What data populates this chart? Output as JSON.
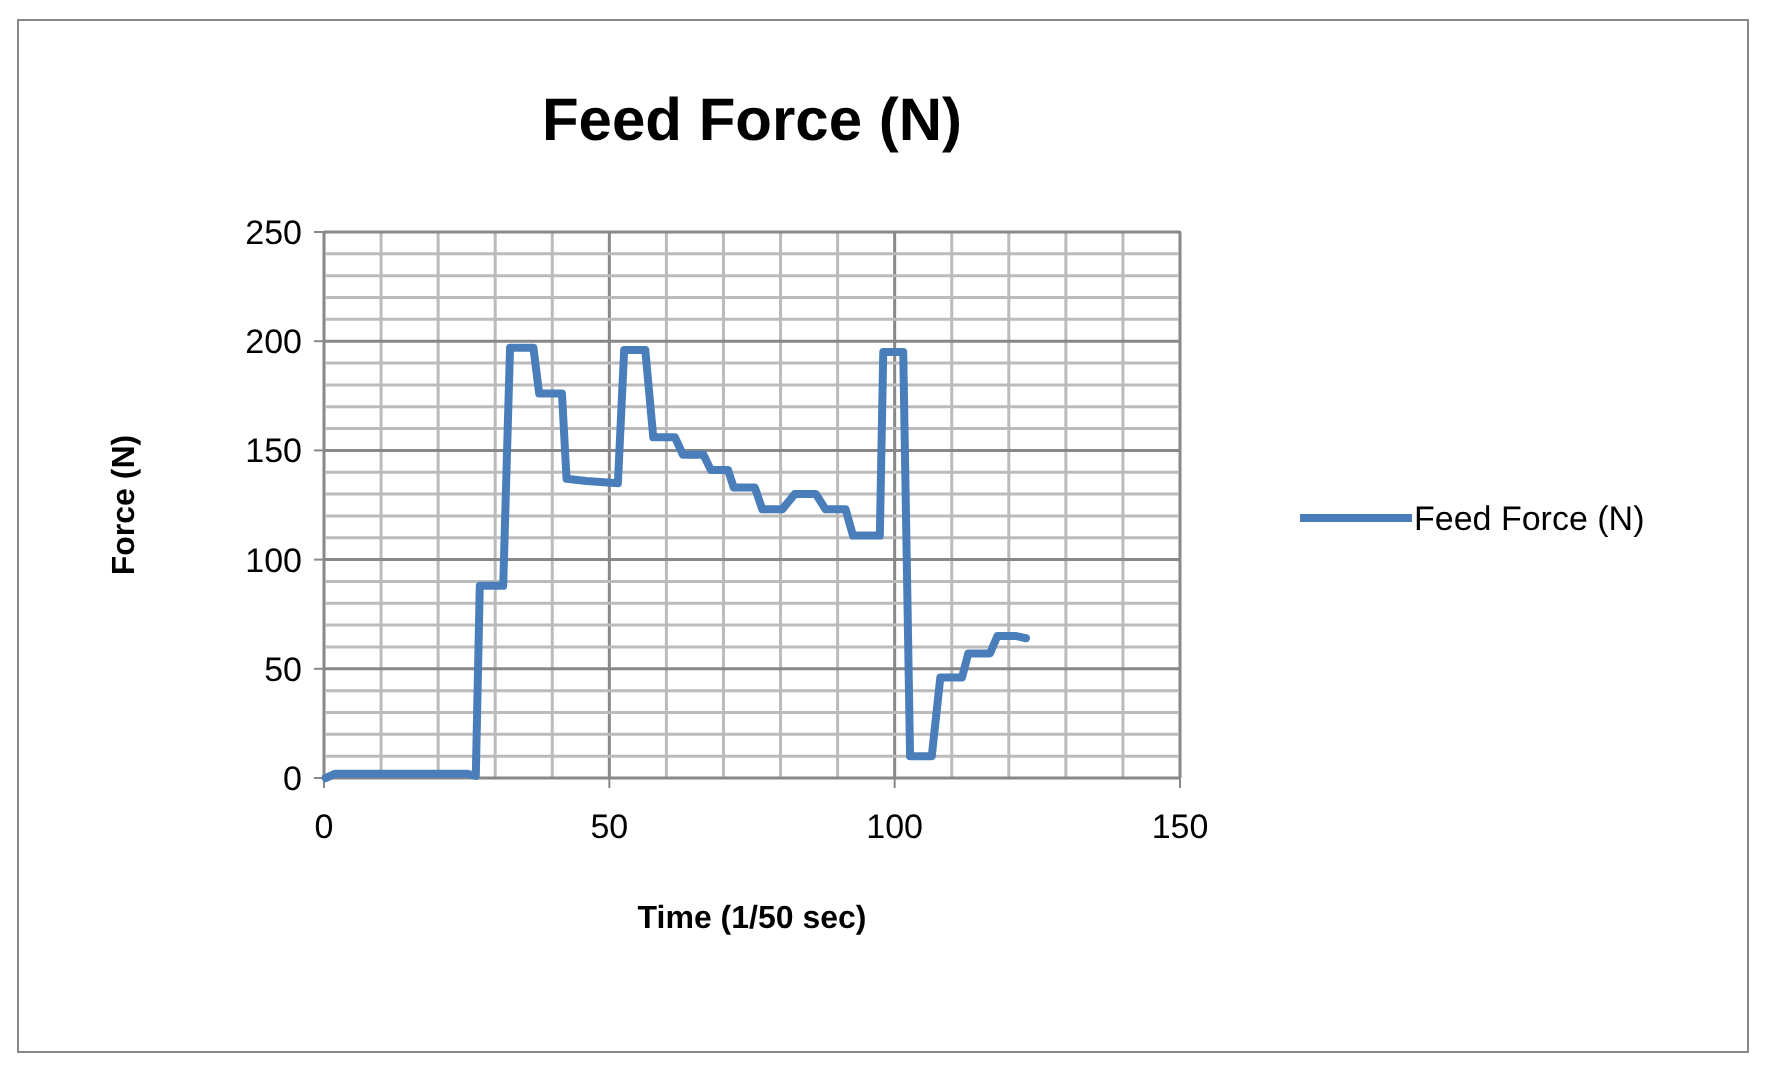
{
  "chart_data": {
    "type": "line",
    "title": "Feed Force (N)",
    "xlabel": "Time (1/50 sec)",
    "ylabel": "Force (N)",
    "x": [
      0.3,
      2,
      25,
      26.6,
      27.3,
      31.4,
      32.6,
      36.7,
      37.7,
      41.7,
      42.5,
      46,
      51.5,
      52.6,
      56.3,
      57.7,
      61.5,
      62.9,
      66.5,
      67.8,
      70.8,
      71.8,
      75.5,
      76.8,
      80.3,
      82.5,
      86.2,
      87.9,
      91.4,
      92.7,
      97.4,
      98,
      101.5,
      102.7,
      106.5,
      108,
      111.8,
      112.9,
      116.7,
      118,
      121.3,
      123
    ],
    "series": [
      {
        "name": "Feed Force (N)",
        "color": "#4a7ebb",
        "values": [
          0,
          2,
          2,
          1,
          88,
          88,
          197,
          197,
          176,
          176,
          137,
          136,
          135,
          196,
          196,
          156,
          156,
          148,
          148,
          141,
          141,
          133,
          133,
          123,
          123,
          130,
          130,
          123,
          123,
          111,
          111,
          195,
          195,
          10,
          10,
          46,
          46,
          57,
          57,
          65,
          65,
          64
        ]
      }
    ],
    "xlim": [
      0,
      150
    ],
    "ylim": [
      0,
      250
    ],
    "xticks": [
      0,
      {
        "value": 10,
        "label": null
      },
      {
        "value": 20,
        "label": null
      },
      {
        "value": 30,
        "label": null
      },
      {
        "value": 40,
        "label": null
      },
      50,
      {
        "value": 60,
        "label": null
      },
      {
        "value": 70,
        "label": null
      },
      {
        "value": 80,
        "label": null
      },
      {
        "value": 90,
        "label": null
      },
      100,
      {
        "value": 110,
        "label": null
      },
      {
        "value": 120,
        "label": null
      },
      {
        "value": 130,
        "label": null
      },
      {
        "value": 140,
        "label": null
      },
      150
    ],
    "yticks": [
      0,
      {
        "value": 10,
        "label": null
      },
      {
        "value": 20,
        "label": null
      },
      {
        "value": 30,
        "label": null
      },
      {
        "value": 40,
        "label": null
      },
      50,
      {
        "value": 60,
        "label": null
      },
      {
        "value": 70,
        "label": null
      },
      {
        "value": 80,
        "label": null
      },
      {
        "value": 90,
        "label": null
      },
      100,
      {
        "value": 110,
        "label": null
      },
      {
        "value": 120,
        "label": null
      },
      {
        "value": 130,
        "label": null
      },
      {
        "value": 140,
        "label": null
      },
      150,
      {
        "value": 160,
        "label": null
      },
      {
        "value": 170,
        "label": null
      },
      {
        "value": 180,
        "label": null
      },
      {
        "value": 190,
        "label": null
      },
      200,
      {
        "value": 210,
        "label": null
      },
      {
        "value": 220,
        "label": null
      },
      {
        "value": 230,
        "label": null
      },
      {
        "value": 240,
        "label": null
      },
      250
    ],
    "grid": true,
    "legend": "right",
    "marker": "none",
    "line_style": "solid"
  }
}
